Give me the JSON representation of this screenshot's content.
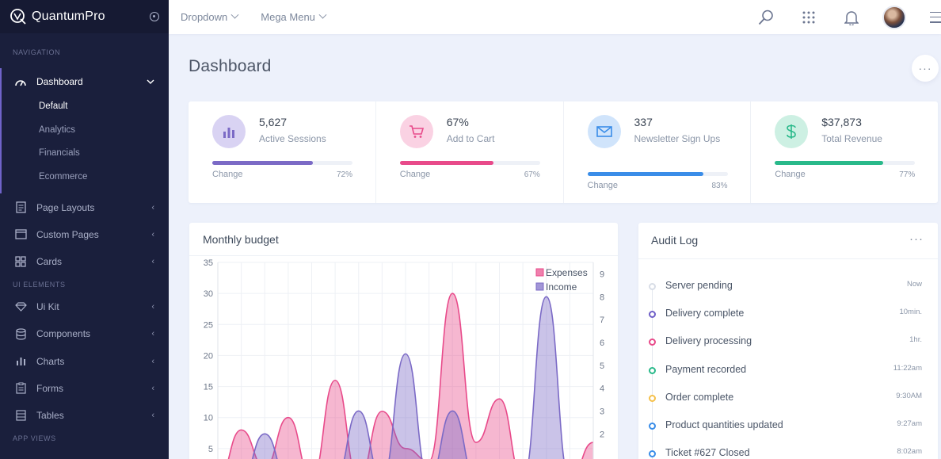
{
  "brand": {
    "name": "QuantumPro"
  },
  "topbar": {
    "menus": [
      "Dropdown",
      "Mega Menu"
    ]
  },
  "sidebar": {
    "sections": [
      {
        "title": "NAVIGATION"
      },
      {
        "title": "UI ELEMENTS"
      },
      {
        "title": "APP VIEWS"
      }
    ],
    "dashboard": {
      "label": "Dashboard",
      "sub_items": [
        "Default",
        "Analytics",
        "Financials",
        "Ecommerce"
      ]
    },
    "nav_items_1": [
      {
        "label": "Page Layouts",
        "icon": "page-icon"
      },
      {
        "label": "Custom Pages",
        "icon": "window-icon"
      },
      {
        "label": "Cards",
        "icon": "cards-icon"
      }
    ],
    "nav_items_2": [
      {
        "label": "Ui Kit",
        "icon": "diamond-icon"
      },
      {
        "label": "Components",
        "icon": "database-icon"
      },
      {
        "label": "Charts",
        "icon": "bar-chart-icon"
      },
      {
        "label": "Forms",
        "icon": "form-icon"
      },
      {
        "label": "Tables",
        "icon": "table-icon"
      }
    ]
  },
  "main": {
    "title": "Dashboard",
    "more": "···"
  },
  "stats": [
    {
      "value": "5,627",
      "label": "Active Sessions",
      "change_label": "Change",
      "percent": "72%",
      "fill": 0.72,
      "color": "#7b6ac6",
      "bg": "#d9d3f3",
      "icon": "bar-chart-icon"
    },
    {
      "value": "67%",
      "label": "Add to Cart",
      "change_label": "Change",
      "percent": "67%",
      "fill": 0.67,
      "color": "#e84a8a",
      "bg": "#fad2e3",
      "icon": "cart-icon"
    },
    {
      "value": "337",
      "label": "Newsletter Sign Ups",
      "change_label": "Change",
      "percent": "83%",
      "fill": 0.83,
      "color": "#3a8de8",
      "bg": "#d0e4fb",
      "icon": "mail-icon"
    },
    {
      "value": "$37,873",
      "label": "Total Revenue",
      "change_label": "Change",
      "percent": "77%",
      "fill": 0.77,
      "color": "#29b98a",
      "bg": "#cdf0e3",
      "icon": "dollar-icon"
    }
  ],
  "budget": {
    "title": "Monthly budget"
  },
  "chart_data": {
    "type": "area",
    "left_axis": {
      "ticks": [
        "35",
        "30",
        "25",
        "20",
        "15",
        "10",
        "5"
      ],
      "range": [
        0,
        35
      ]
    },
    "right_axis": {
      "ticks": [
        "9",
        "8",
        "7",
        "6",
        "5",
        "4",
        "3",
        "2"
      ],
      "range": [
        0,
        9.5
      ]
    },
    "legend": {
      "position": "top-right"
    },
    "grid": true,
    "series": [
      {
        "name": "Expenses",
        "color": "#e84a8a",
        "axis": "left",
        "values": [
          0,
          8,
          2,
          10,
          0,
          16,
          0,
          11,
          5,
          3,
          30,
          6,
          13,
          0,
          0,
          0,
          6
        ]
      },
      {
        "name": "Income",
        "color": "#7b6ac6",
        "axis": "right",
        "values": [
          0,
          0,
          2,
          0,
          0,
          0,
          3,
          0,
          5.5,
          0,
          3,
          0,
          0,
          0,
          8,
          0,
          0
        ]
      }
    ]
  },
  "audit": {
    "title": "Audit Log",
    "more": "···",
    "items": [
      {
        "text": "Server pending",
        "time": "Now",
        "color": "#d8dde6"
      },
      {
        "text": "Delivery complete",
        "time": "10min.",
        "color": "#6f5fc7"
      },
      {
        "text": "Delivery processing",
        "time": "1hr.",
        "color": "#e84a8a"
      },
      {
        "text": "Payment recorded",
        "time": "11:22am",
        "color": "#29b98a"
      },
      {
        "text": "Order complete",
        "time": "9:30AM",
        "color": "#f5c04a"
      },
      {
        "text": "Product quantities updated",
        "time": "9:27am",
        "color": "#3a8de8"
      },
      {
        "text": "Ticket #627 Closed",
        "time": "8:02am",
        "color": "#3a8de8"
      }
    ]
  },
  "colors": {
    "sidebar_bg": "#1a1f3c",
    "accent": "#6f63c9",
    "page_bg": "#edf1fb"
  }
}
